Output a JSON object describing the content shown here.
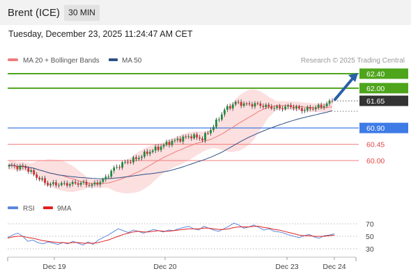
{
  "header": {
    "instrument": "Brent (ICE)",
    "timeframe": "30 MIN",
    "timestamp": "Tuesday, December 23, 2025 11:24:47 AM CET"
  },
  "legend": {
    "ma20": "MA 20 + Bollinger Bands",
    "ma50": "MA 50",
    "credit": "Research © 2025 Trading Central"
  },
  "rsi_legend": {
    "rsi": "RSI",
    "ma9": "9MA"
  },
  "colors": {
    "green": "#4ea51c",
    "blue": "#3e7be6",
    "red": "#f07c7c",
    "current": "#333333",
    "arrow": "#285fa8",
    "band": "#fcdcdc",
    "ma50": "#2e4f86",
    "rsi": "#5b88dc",
    "rsi_ma": "#e02020"
  },
  "chart_data": [
    {
      "type": "candlestick",
      "title": "Brent (ICE)",
      "timeframe": "30 MIN",
      "x_ticks": [
        "Dec 19",
        "Dec 20",
        "Dec 23",
        "Dec 24"
      ],
      "ylim": [
        59.4,
        62.7
      ],
      "levels": [
        {
          "value": 62.4,
          "label": "62.40",
          "kind": "resistance",
          "color": "#4ea51c"
        },
        {
          "value": 62.0,
          "label": "62.00",
          "kind": "resistance",
          "color": "#4ea51c"
        },
        {
          "value": 61.65,
          "label": "61.65",
          "kind": "last-price",
          "color": "#333333"
        },
        {
          "value": 60.9,
          "label": "60.90",
          "kind": "pivot",
          "color": "#3e7be6"
        },
        {
          "value": 60.45,
          "label": "60.45",
          "kind": "support",
          "color": "#f07c7c"
        },
        {
          "value": 60.0,
          "label": "60.00",
          "kind": "support",
          "color": "#f07c7c"
        }
      ],
      "close_anchors": [
        [
          0,
          59.85
        ],
        [
          6,
          59.8
        ],
        [
          10,
          59.55
        ],
        [
          14,
          59.35
        ],
        [
          20,
          59.35
        ],
        [
          26,
          59.38
        ],
        [
          30,
          59.32
        ],
        [
          34,
          59.45
        ],
        [
          38,
          59.78
        ],
        [
          42,
          59.95
        ],
        [
          46,
          60.05
        ],
        [
          50,
          60.22
        ],
        [
          54,
          60.35
        ],
        [
          58,
          60.5
        ],
        [
          62,
          60.6
        ],
        [
          66,
          60.68
        ],
        [
          70,
          60.6
        ],
        [
          74,
          60.95
        ],
        [
          78,
          61.4
        ],
        [
          82,
          61.6
        ],
        [
          86,
          61.55
        ],
        [
          90,
          61.55
        ],
        [
          94,
          61.48
        ],
        [
          98,
          61.45
        ],
        [
          102,
          61.5
        ],
        [
          106,
          61.4
        ],
        [
          110,
          61.45
        ],
        [
          114,
          61.52
        ],
        [
          117,
          61.65
        ]
      ],
      "candle_count": 118,
      "series": [
        {
          "name": "MA 20 + Bollinger Bands"
        },
        {
          "name": "MA 50"
        }
      ],
      "projection": {
        "from": 61.65,
        "to": 62.4
      }
    },
    {
      "type": "line",
      "title": "RSI",
      "yticks": [
        30,
        50,
        70
      ],
      "ylim": [
        20,
        80
      ],
      "series": [
        {
          "name": "RSI",
          "values": [
            48,
            52,
            55,
            50,
            42,
            44,
            40,
            38,
            41,
            39,
            37,
            40,
            38,
            42,
            39,
            36,
            41,
            37,
            44,
            48,
            52,
            57,
            62,
            59,
            56,
            60,
            58,
            55,
            58,
            61,
            59,
            57,
            60,
            59,
            62,
            64,
            66,
            62,
            60,
            66,
            63,
            60,
            58,
            62,
            66,
            71,
            68,
            63,
            65,
            68,
            64,
            60,
            62,
            58,
            57,
            55,
            52,
            50,
            48,
            51,
            53,
            49,
            47,
            51,
            52,
            54
          ]
        },
        {
          "name": "9MA",
          "values": [
            47,
            49,
            50,
            50,
            48,
            47,
            45,
            43,
            42,
            41,
            40,
            40,
            39,
            40,
            40,
            39,
            39,
            39,
            40,
            42,
            44,
            47,
            50,
            53,
            55,
            57,
            58,
            57,
            57,
            58,
            59,
            58,
            58,
            59,
            60,
            61,
            62,
            62,
            62,
            63,
            63,
            62,
            61,
            61,
            62,
            64,
            65,
            65,
            65,
            66,
            66,
            64,
            63,
            61,
            60,
            58,
            56,
            54,
            52,
            51,
            51,
            50,
            50,
            50,
            51,
            52
          ]
        }
      ]
    }
  ]
}
